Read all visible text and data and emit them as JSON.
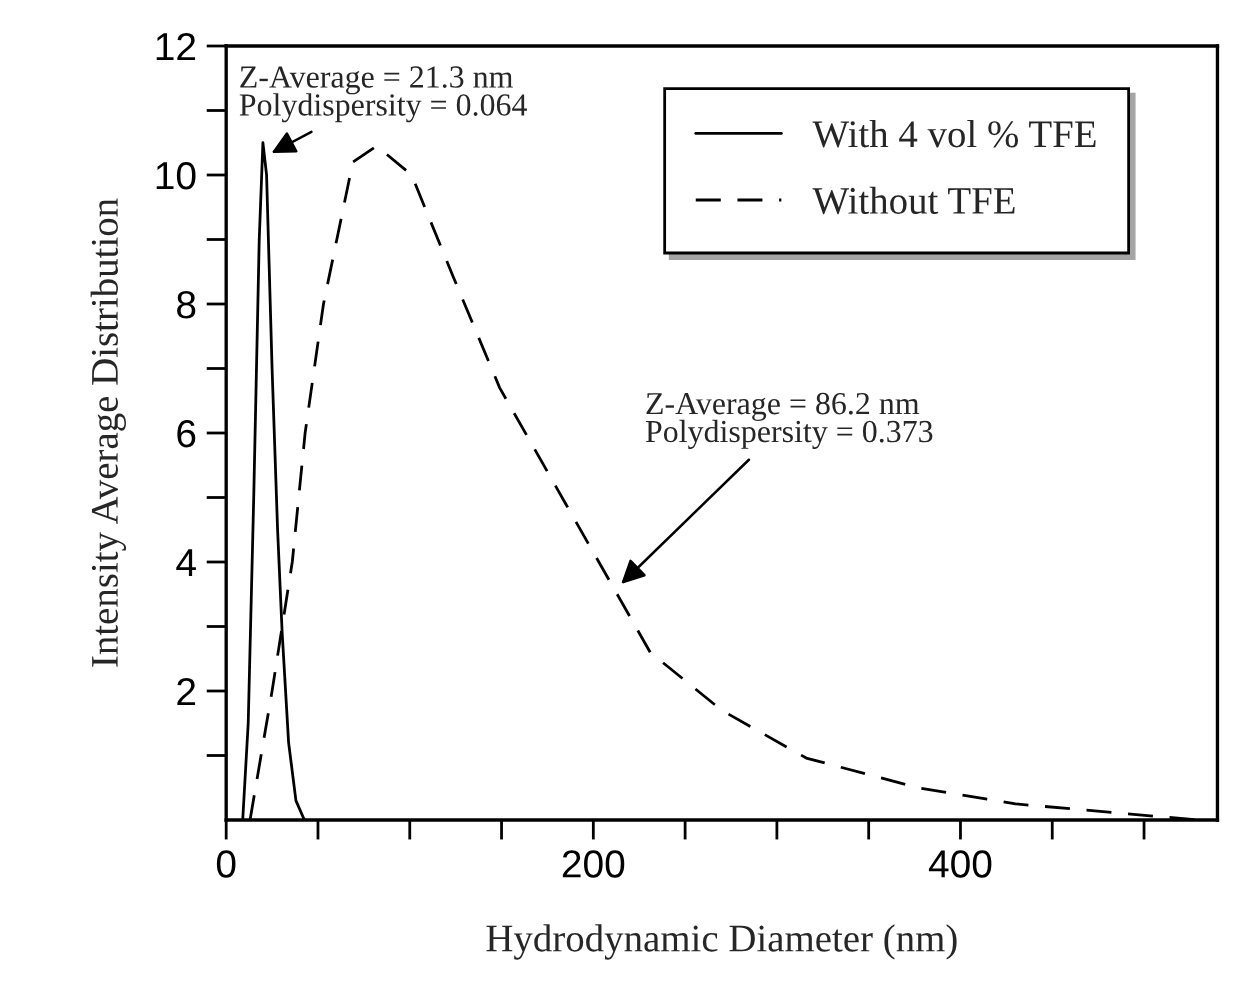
{
  "chart_data": {
    "type": "line",
    "xlabel": "Hydrodynamic Diameter (nm)",
    "ylabel": "Intensity Average Distribution",
    "series": [
      {
        "name": "With 4 vol % TFE",
        "color": "#000000",
        "line_style": "solid",
        "x": [
          9,
          12,
          15,
          18,
          20,
          22,
          25,
          28,
          30.5,
          34,
          38,
          42.6
        ],
        "values": [
          0,
          1.5,
          5,
          9,
          10.5,
          10,
          7,
          4.5,
          2.9,
          1.2,
          0.3,
          0
        ]
      },
      {
        "name": "Without TFE",
        "color": "#000000",
        "line_style": "dashed",
        "x": [
          13,
          25,
          36,
          43,
          53,
          69,
          82,
          101,
          124,
          149,
          185,
          215,
          231,
          270,
          316,
          377,
          430,
          489,
          530
        ],
        "values": [
          0,
          2,
          4,
          6,
          8,
          10.2,
          10.45,
          10,
          8.4,
          6.7,
          4.9,
          3.4,
          2.6,
          1.7,
          0.96,
          0.5,
          0.25,
          0.1,
          0
        ]
      }
    ],
    "annotations": [
      {
        "text": "Z-Average = 21.3 nm\nPolydispersity = 0.064",
        "x": 22,
        "y": 10.3
      },
      {
        "text": "Z-Average = 86.2 nm\nPolydispersity = 0.373",
        "x": 213,
        "y": 3.6
      }
    ],
    "xlim": [
      0,
      540
    ],
    "ylim": [
      0,
      12
    ],
    "xticks": [
      0,
      {
        "value": 50,
        "label": null
      },
      {
        "value": 100,
        "label": null
      },
      {
        "value": 150,
        "label": null
      },
      200,
      {
        "value": 250,
        "label": null
      },
      {
        "value": 300,
        "label": null
      },
      {
        "value": 350,
        "label": null
      },
      400,
      {
        "value": 450,
        "label": null
      },
      {
        "value": 500,
        "label": null
      }
    ],
    "yticks": [
      {
        "value": 1,
        "label": null
      },
      2,
      {
        "value": 3,
        "label": null
      },
      4,
      {
        "value": 5,
        "label": null
      },
      6,
      {
        "value": 7,
        "label": null
      },
      8,
      {
        "value": 9,
        "label": null
      },
      10,
      {
        "value": 11,
        "label": null
      },
      12
    ],
    "grid": false,
    "legend": "top right"
  }
}
